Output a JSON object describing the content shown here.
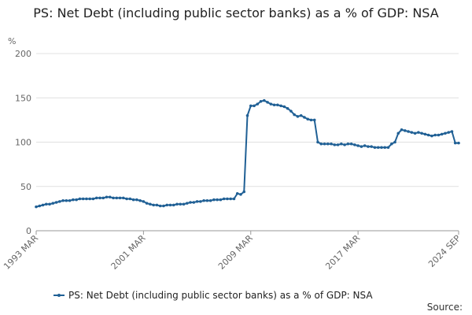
{
  "chart_data": {
    "type": "line",
    "title": "PS: Net Debt (including public sector banks) as a % of GDP: NSA",
    "y_label": "%",
    "source": "Source:",
    "categories": [
      "1993 MAR",
      null,
      null,
      null,
      null,
      null,
      null,
      null,
      null,
      null,
      null,
      null,
      null,
      null,
      null,
      null,
      null,
      null,
      null,
      null,
      null,
      null,
      null,
      null,
      null,
      null,
      null,
      null,
      null,
      null,
      null,
      null,
      "2001 MAR",
      null,
      null,
      null,
      null,
      null,
      null,
      null,
      null,
      null,
      null,
      null,
      null,
      null,
      null,
      null,
      null,
      null,
      null,
      null,
      null,
      null,
      null,
      null,
      null,
      null,
      null,
      null,
      null,
      null,
      null,
      null,
      "2009 MAR",
      null,
      null,
      null,
      null,
      null,
      null,
      null,
      null,
      null,
      null,
      null,
      null,
      null,
      null,
      null,
      null,
      null,
      null,
      null,
      null,
      null,
      null,
      null,
      null,
      null,
      null,
      null,
      null,
      null,
      null,
      null,
      "2017 MAR",
      null,
      null,
      null,
      null,
      null,
      null,
      null,
      null,
      null,
      null,
      null,
      null,
      null,
      null,
      null,
      null,
      null,
      null,
      null,
      null,
      null,
      null,
      null,
      null,
      null,
      null,
      null,
      null,
      null,
      "2024 SEP"
    ],
    "series": [
      {
        "name": "PS: Net Debt (including public sector banks) as a % of GDP: NSA",
        "color": "#206095",
        "values": [
          27,
          28,
          29,
          30,
          30,
          31,
          32,
          33,
          34,
          34,
          34,
          35,
          35,
          36,
          36,
          36,
          36,
          36,
          37,
          37,
          37,
          38,
          38,
          37,
          37,
          37,
          37,
          36,
          36,
          35,
          35,
          34,
          33,
          31,
          30,
          29,
          29,
          28,
          28,
          29,
          29,
          29,
          30,
          30,
          30,
          31,
          32,
          32,
          33,
          33,
          34,
          34,
          34,
          35,
          35,
          35,
          36,
          36,
          36,
          36,
          42,
          41,
          44,
          130,
          141,
          141,
          143,
          146,
          147,
          145,
          143,
          142,
          142,
          141,
          140,
          138,
          135,
          131,
          129,
          130,
          128,
          126,
          125,
          125,
          100,
          98,
          98,
          98,
          98,
          97,
          97,
          98,
          97,
          98,
          98,
          97,
          96,
          95,
          96,
          95,
          95,
          94,
          94,
          94,
          94,
          94,
          98,
          100,
          110,
          114,
          113,
          112,
          111,
          110,
          111,
          110,
          109,
          108,
          107,
          108,
          108,
          109,
          110,
          111,
          112,
          99,
          99
        ]
      }
    ],
    "ylim": [
      0,
      200
    ],
    "yticks": [
      0,
      50,
      100,
      150,
      200
    ],
    "grid": true
  }
}
